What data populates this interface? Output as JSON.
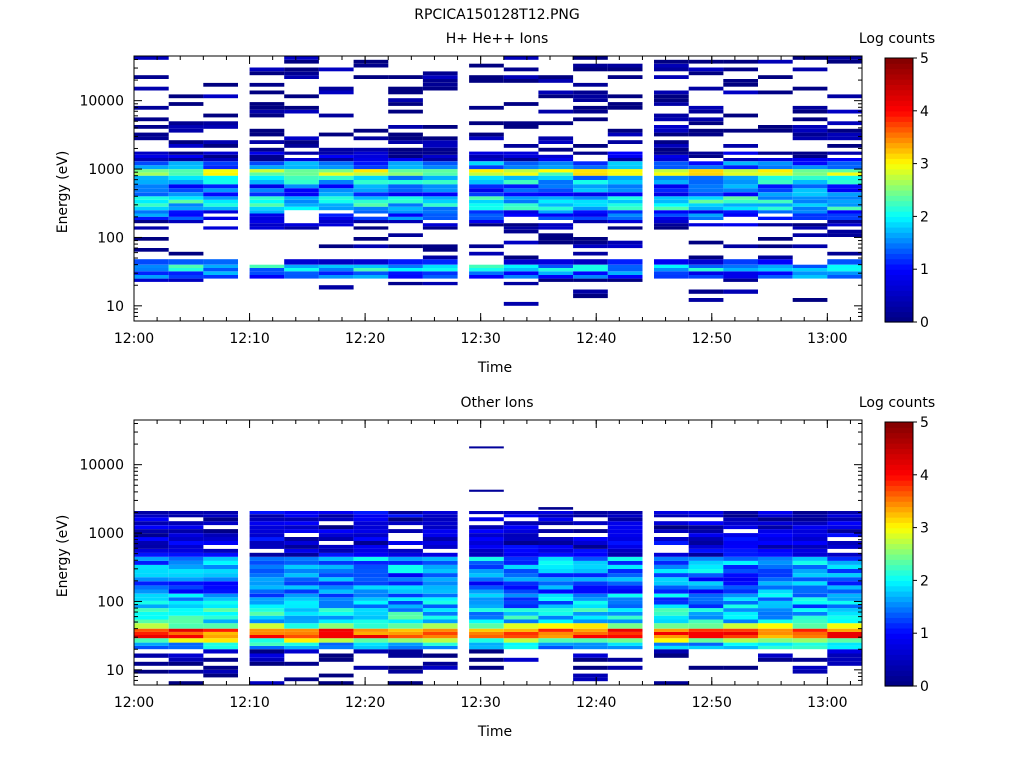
{
  "figure": {
    "title": "RPCICA150128T12.PNG"
  },
  "colors": {
    "background": "#ffffff",
    "axis": "#000000",
    "colormap": [
      "#000080",
      "#0000ff",
      "#00ffff",
      "#ffff00",
      "#ff0000",
      "#800000"
    ]
  },
  "chart_data": [
    {
      "type": "heatmap",
      "title": "H+ He++ Ions",
      "xlabel": "Time",
      "ylabel": "Energy (eV)",
      "y_scale": "log",
      "xlim": [
        "12:00",
        "13:03"
      ],
      "ylim": [
        6,
        45000
      ],
      "x_ticks": [
        "12:00",
        "12:10",
        "12:20",
        "12:30",
        "12:40",
        "12:50",
        "13:00"
      ],
      "y_ticks": [
        "10",
        "100",
        "1000",
        "10000"
      ],
      "colorbar": {
        "label": "Log counts",
        "range": [
          0,
          5
        ],
        "ticks": [
          "0",
          "1",
          "2",
          "3",
          "4",
          "5"
        ]
      },
      "time_columns": [
        "12:00",
        "12:03",
        "12:06",
        "12:10",
        "12:13",
        "12:16",
        "12:19",
        "12:22",
        "12:25",
        "12:29",
        "12:32",
        "12:35",
        "12:38",
        "12:41",
        "12:45",
        "12:48",
        "12:51",
        "12:54",
        "12:57",
        "13:00"
      ],
      "profile": [
        {
          "energy": [
            10,
            13
          ],
          "level": 0,
          "occurrence": 0.06
        },
        {
          "energy": [
            13,
            20
          ],
          "level": 0,
          "occurrence": 0.08
        },
        {
          "energy": [
            20,
            25
          ],
          "level": 0.2,
          "occurrence": 0.25
        },
        {
          "energy": [
            25,
            32
          ],
          "level": 1.3,
          "occurrence": 1.0
        },
        {
          "energy": [
            32,
            40
          ],
          "level": 1.8,
          "occurrence": 1.0
        },
        {
          "energy": [
            40,
            48
          ],
          "level": 1.0,
          "occurrence": 0.8
        },
        {
          "energy": [
            48,
            70
          ],
          "level": 0.1,
          "occurrence": 0.25
        },
        {
          "energy": [
            70,
            130
          ],
          "level": 0.1,
          "occurrence": 0.3
        },
        {
          "energy": [
            130,
            180
          ],
          "level": 0.4,
          "occurrence": 0.5
        },
        {
          "energy": [
            180,
            250
          ],
          "level": 1.2,
          "occurrence": 0.85
        },
        {
          "energy": [
            250,
            400
          ],
          "level": 1.9,
          "occurrence": 1.0
        },
        {
          "energy": [
            400,
            600
          ],
          "level": 1.3,
          "occurrence": 1.0
        },
        {
          "energy": [
            600,
            800
          ],
          "level": 1.8,
          "occurrence": 1.0
        },
        {
          "energy": [
            800,
            1000
          ],
          "level": 2.7,
          "occurrence": 1.0
        },
        {
          "energy": [
            1000,
            1300
          ],
          "level": 1.5,
          "occurrence": 1.0
        },
        {
          "energy": [
            1300,
            1800
          ],
          "level": 0.5,
          "occurrence": 0.8
        },
        {
          "energy": [
            1800,
            5000
          ],
          "level": 0.1,
          "occurrence": 0.45
        },
        {
          "energy": [
            5000,
            45000
          ],
          "level": 0.05,
          "occurrence": 0.33
        }
      ]
    },
    {
      "type": "heatmap",
      "title": "Other Ions",
      "xlabel": "Time",
      "ylabel": "Energy (eV)",
      "y_scale": "log",
      "xlim": [
        "12:00",
        "13:03"
      ],
      "ylim": [
        6,
        45000
      ],
      "x_ticks": [
        "12:00",
        "12:10",
        "12:20",
        "12:30",
        "12:40",
        "12:50",
        "13:00"
      ],
      "y_ticks": [
        "10",
        "100",
        "1000",
        "10000"
      ],
      "colorbar": {
        "label": "Log counts",
        "range": [
          0,
          5
        ],
        "ticks": [
          "0",
          "1",
          "2",
          "3",
          "4",
          "5"
        ]
      },
      "time_columns": [
        "12:00",
        "12:03",
        "12:06",
        "12:10",
        "12:13",
        "12:16",
        "12:19",
        "12:22",
        "12:25",
        "12:29",
        "12:32",
        "12:35",
        "12:38",
        "12:41",
        "12:45",
        "12:48",
        "12:51",
        "12:54",
        "12:57",
        "13:00"
      ],
      "profile": [
        {
          "energy": [
            6,
            10
          ],
          "level": 0.05,
          "occurrence": 0.15
        },
        {
          "energy": [
            10,
            15
          ],
          "level": 0.1,
          "occurrence": 0.25
        },
        {
          "energy": [
            15,
            20
          ],
          "level": 0.3,
          "occurrence": 0.45
        },
        {
          "energy": [
            20,
            25
          ],
          "level": 1.8,
          "occurrence": 1.0
        },
        {
          "energy": [
            25,
            29
          ],
          "level": 2.6,
          "occurrence": 1.0
        },
        {
          "energy": [
            29,
            40
          ],
          "level": 3.7,
          "occurrence": 1.0
        },
        {
          "energy": [
            40,
            48
          ],
          "level": 2.6,
          "occurrence": 1.0
        },
        {
          "energy": [
            48,
            80
          ],
          "level": 1.9,
          "occurrence": 1.0
        },
        {
          "energy": [
            80,
            130
          ],
          "level": 1.6,
          "occurrence": 1.0
        },
        {
          "energy": [
            130,
            260
          ],
          "level": 1.4,
          "occurrence": 1.0
        },
        {
          "energy": [
            260,
            450
          ],
          "level": 1.6,
          "occurrence": 1.0
        },
        {
          "energy": [
            450,
            1000
          ],
          "level": 0.6,
          "occurrence": 0.9
        },
        {
          "energy": [
            1000,
            1700
          ],
          "level": 0.5,
          "occurrence": 0.85
        },
        {
          "energy": [
            1700,
            2100
          ],
          "level": 0.6,
          "occurrence": 0.9
        }
      ],
      "extras": [
        {
          "time": "12:29",
          "energy": [
            4000,
            4300
          ],
          "level": 0.2
        },
        {
          "time": "12:29",
          "energy": [
            17500,
            18500
          ],
          "level": 0.2
        },
        {
          "time": "12:35",
          "energy": [
            2200,
            2400
          ],
          "level": 0.1
        }
      ]
    }
  ]
}
